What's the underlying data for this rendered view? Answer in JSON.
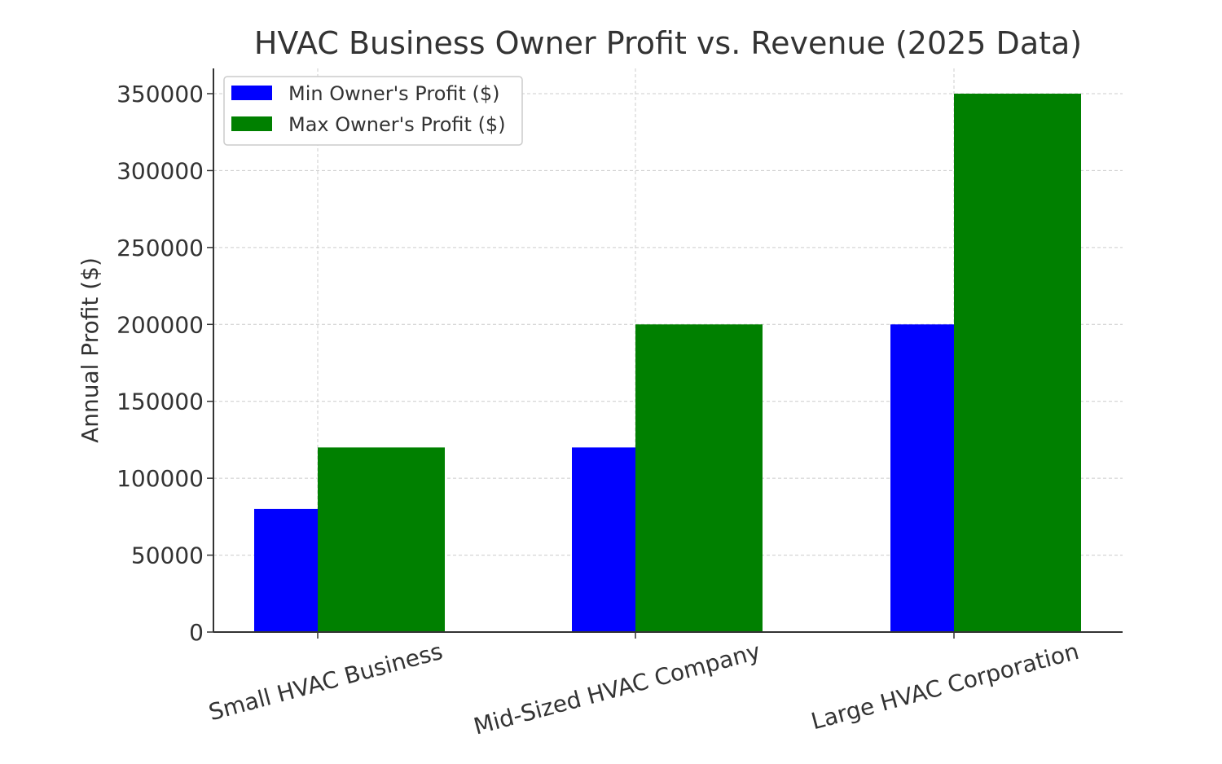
{
  "chart_data": {
    "type": "bar",
    "title": "HVAC Business Owner Profit vs. Revenue (2025 Data)",
    "xlabel": "",
    "ylabel": "Annual Profit ($)",
    "categories": [
      "Small HVAC Business",
      "Mid-Sized HVAC Company",
      "Large HVAC Corporation"
    ],
    "series": [
      {
        "name": "Min Owner's Profit ($)",
        "color": "#0000ff",
        "values": [
          80000,
          120000,
          200000
        ]
      },
      {
        "name": "Max Owner's Profit ($)",
        "color": "#008000",
        "values": [
          120000,
          200000,
          350000
        ]
      }
    ],
    "ylim": [
      0,
      350000
    ],
    "yticks": [
      0,
      50000,
      100000,
      150000,
      200000,
      250000,
      300000,
      350000
    ],
    "ytick_labels": [
      "0",
      "50000",
      "100000",
      "150000",
      "200000",
      "250000",
      "300000",
      "350000"
    ],
    "grid": true,
    "legend_position": "top-left"
  }
}
